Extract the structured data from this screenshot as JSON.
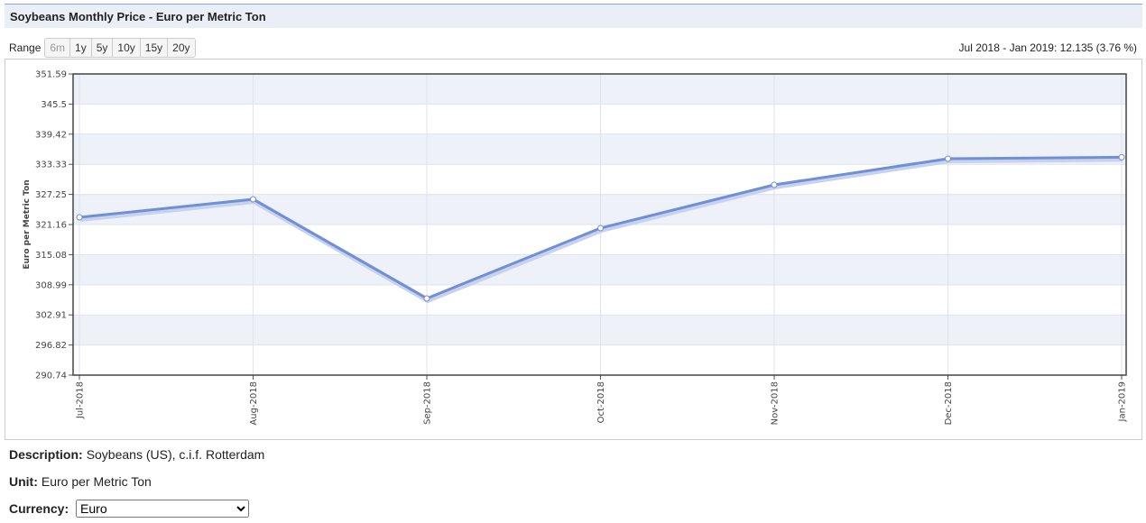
{
  "header": {
    "title": "Soybeans Monthly Price - Euro per Metric Ton"
  },
  "range": {
    "label": "Range",
    "options": [
      "6m",
      "1y",
      "5y",
      "10y",
      "15y",
      "20y"
    ],
    "summary": "Jul 2018 - Jan 2019: 12.135 (3.76 %)"
  },
  "chart_data": {
    "type": "line",
    "y_label": "Euro per Metric Ton",
    "categories": [
      "Jul-2018",
      "Aug-2018",
      "Sep-2018",
      "Oct-2018",
      "Nov-2018",
      "Dec-2018",
      "Jan-2019"
    ],
    "values": [
      322.62,
      326.27,
      306.23,
      320.44,
      329.18,
      334.46,
      334.76
    ],
    "color": "#6f8fd8",
    "ylim": [
      290.74,
      351.59
    ],
    "yticks": [
      290.74,
      296.82,
      302.91,
      308.99,
      315.08,
      321.16,
      327.25,
      333.33,
      339.42,
      345.5,
      351.59
    ],
    "grid": true
  },
  "details": {
    "description": {
      "label": "Description:",
      "text": "Soybeans (US), c.i.f. Rotterdam"
    },
    "unit": {
      "label": "Unit:",
      "text": "Euro per Metric Ton"
    },
    "currency": {
      "label": "Currency:",
      "selected": "Euro"
    }
  }
}
